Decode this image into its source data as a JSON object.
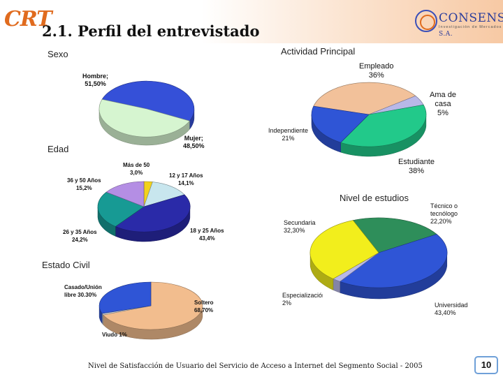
{
  "header": {
    "brand": "CRT",
    "title": "2.1. Perfil del entrevistado",
    "logo_name": "CONSENSO",
    "logo_suffix": " S.A.",
    "logo_tagline": "Investigación de Mercados"
  },
  "sections": {
    "sexo": "Sexo",
    "actividad": "Actividad Principal",
    "edad": "Edad",
    "nivel": "Nivel de estudios",
    "civil": "Estado Civil"
  },
  "charts": {
    "sexo": {
      "type": "pie",
      "slices": [
        {
          "label": "Hombre;",
          "value_label": "51,50%",
          "value": 51.5,
          "color": "#3550d8"
        },
        {
          "label": "Mujer;",
          "value_label": "48,50%",
          "value": 48.5,
          "color": "#d6f5d0"
        }
      ]
    },
    "actividad": {
      "type": "pie",
      "slices": [
        {
          "label": "Empleado",
          "value_label": "36%",
          "value": 36,
          "color": "#f2c19a"
        },
        {
          "label": "Ama de casa",
          "value_label": "5%",
          "value": 5,
          "color": "#b8b8e8"
        },
        {
          "label": "Estudiante",
          "value_label": "38%",
          "value": 38,
          "color": "#22c98a"
        },
        {
          "label": "Independiente",
          "value_label": "21%",
          "value": 21,
          "color": "#2f55d6"
        }
      ]
    },
    "edad": {
      "type": "pie",
      "slices": [
        {
          "label": "Más de 50",
          "value_label": "3,0%",
          "value": 3.0,
          "color": "#f2d21c"
        },
        {
          "label": "12 y 17 Años",
          "value_label": "14,1%",
          "value": 14.1,
          "color": "#c8e6ee"
        },
        {
          "label": "18 y 25 Años",
          "value_label": "43,4%",
          "value": 43.4,
          "color": "#2a2aa8"
        },
        {
          "label": "26 y 35 Años",
          "value_label": "24,2%",
          "value": 24.2,
          "color": "#179a94"
        },
        {
          "label": "36 y 50 Años",
          "value_label": "15,2%",
          "value": 15.2,
          "color": "#b48ee4"
        }
      ]
    },
    "nivel": {
      "type": "pie",
      "slices": [
        {
          "label": "Técnico o tecnólogo",
          "value_label": "22,20%",
          "value": 22.2,
          "color": "#2e8e5a"
        },
        {
          "label": "Universidad",
          "value_label": "43,40%",
          "value": 43.4,
          "color": "#2f55d6"
        },
        {
          "label": "Especialización/maestría",
          "value_label": "2%",
          "value": 2,
          "color": "#b8b8e8"
        },
        {
          "label": "Secundaria",
          "value_label": "32,30%",
          "value": 32.3,
          "color": "#f2ee1c"
        }
      ]
    },
    "civil": {
      "type": "pie",
      "slices": [
        {
          "label": "Soltero",
          "value_label": "68,70%",
          "value": 68.7,
          "color": "#f2bd8e"
        },
        {
          "label": "Viudo",
          "value_label": "1%",
          "value": 1,
          "color": "#d0d0d0"
        },
        {
          "label": "Casado/Unión libre",
          "value_label": "30.30%",
          "value": 30.3,
          "color": "#2f55d6"
        }
      ]
    }
  },
  "footer": {
    "text": "Nivel de Satisfacción de Usuario del Servicio de  Acceso a Internet del Segmento Social - 2005",
    "page_number": "10"
  }
}
